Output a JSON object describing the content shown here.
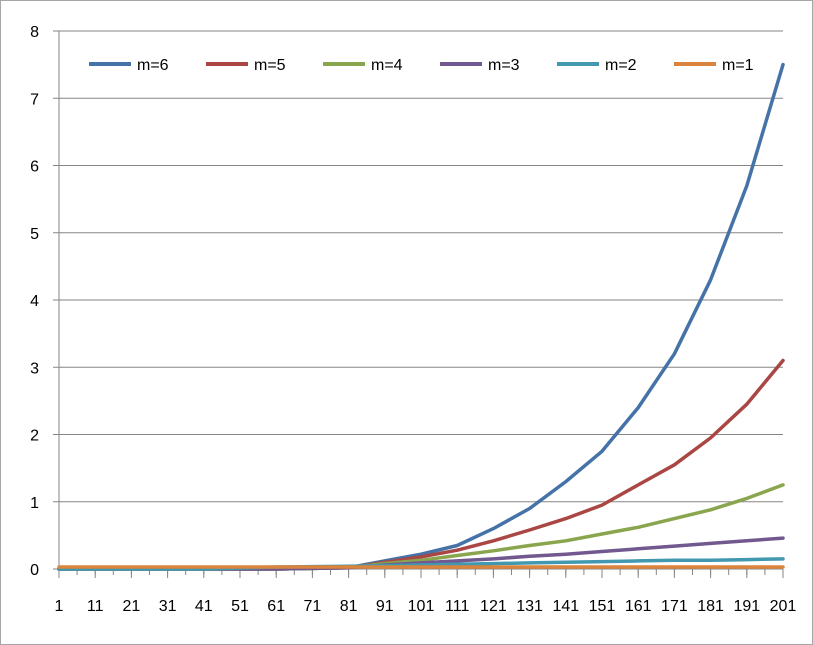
{
  "chart_data": {
    "type": "line",
    "title": "",
    "xlabel": "",
    "ylabel": "",
    "x_ticks": [
      "1",
      "11",
      "21",
      "31",
      "41",
      "51",
      "61",
      "71",
      "81",
      "91",
      "101",
      "111",
      "121",
      "131",
      "141",
      "151",
      "161",
      "171",
      "181",
      "191",
      "201"
    ],
    "y_ticks": [
      "0",
      "1",
      "2",
      "3",
      "4",
      "5",
      "6",
      "7",
      "8"
    ],
    "xlim": [
      1,
      201
    ],
    "ylim": [
      0,
      8
    ],
    "grid": "horizontal",
    "legend_position": "top",
    "series": [
      {
        "name": "m=6",
        "color": "#4572a7",
        "x": [
          1,
          41,
          61,
          81,
          91,
          101,
          111,
          121,
          131,
          141,
          151,
          161,
          171,
          181,
          191,
          201
        ],
        "values": [
          0,
          0,
          0,
          0.02,
          0.12,
          0.22,
          0.35,
          0.6,
          0.9,
          1.3,
          1.75,
          2.4,
          3.2,
          4.3,
          5.7,
          7.5
        ]
      },
      {
        "name": "m=5",
        "color": "#aa4643",
        "x": [
          1,
          41,
          61,
          81,
          91,
          101,
          111,
          121,
          131,
          141,
          151,
          161,
          171,
          181,
          191,
          201
        ],
        "values": [
          0,
          0,
          0,
          0.02,
          0.1,
          0.18,
          0.28,
          0.42,
          0.58,
          0.75,
          0.95,
          1.25,
          1.55,
          1.95,
          2.45,
          3.1
        ]
      },
      {
        "name": "m=4",
        "color": "#89a54e",
        "x": [
          1,
          41,
          61,
          81,
          91,
          101,
          111,
          121,
          131,
          141,
          151,
          161,
          171,
          181,
          191,
          201
        ],
        "values": [
          0,
          0,
          0,
          0.02,
          0.08,
          0.13,
          0.2,
          0.27,
          0.35,
          0.42,
          0.52,
          0.62,
          0.75,
          0.88,
          1.05,
          1.25
        ]
      },
      {
        "name": "m=3",
        "color": "#71588f",
        "x": [
          1,
          41,
          61,
          81,
          91,
          101,
          111,
          121,
          131,
          141,
          151,
          161,
          171,
          181,
          191,
          201
        ],
        "values": [
          0,
          0,
          0,
          0.02,
          0.06,
          0.09,
          0.12,
          0.15,
          0.19,
          0.22,
          0.26,
          0.3,
          0.34,
          0.38,
          0.42,
          0.46
        ]
      },
      {
        "name": "m=2",
        "color": "#4198af",
        "x": [
          1,
          41,
          61,
          81,
          91,
          101,
          111,
          121,
          131,
          141,
          151,
          161,
          171,
          181,
          191,
          201
        ],
        "values": [
          0,
          0,
          0.03,
          0.04,
          0.05,
          0.06,
          0.07,
          0.08,
          0.09,
          0.1,
          0.11,
          0.12,
          0.13,
          0.13,
          0.14,
          0.15
        ]
      },
      {
        "name": "m=1",
        "color": "#db843d",
        "x": [
          1,
          41,
          61,
          81,
          91,
          101,
          111,
          121,
          131,
          141,
          151,
          161,
          171,
          181,
          191,
          201
        ],
        "values": [
          0.03,
          0.03,
          0.03,
          0.03,
          0.03,
          0.03,
          0.03,
          0.03,
          0.03,
          0.03,
          0.03,
          0.03,
          0.03,
          0.03,
          0.03,
          0.03
        ]
      }
    ]
  }
}
